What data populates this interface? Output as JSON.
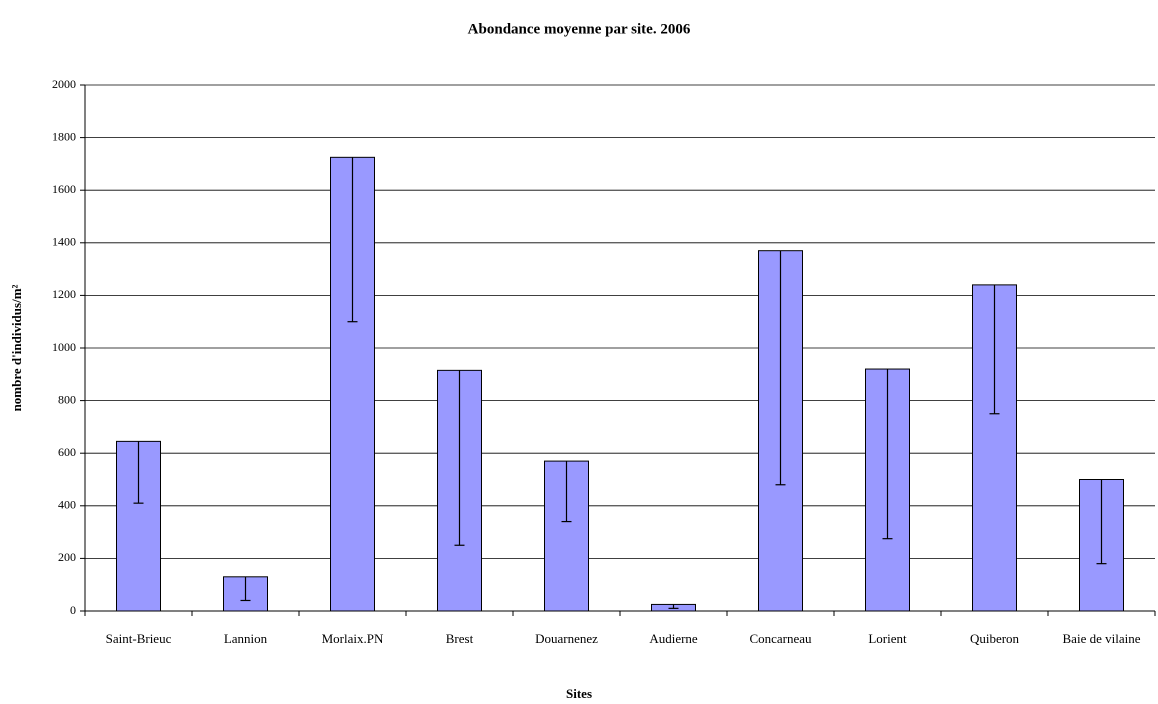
{
  "chart_data": {
    "type": "bar",
    "title": "Abondance moyenne par site. 2006",
    "x_label": "Sites",
    "y_label": "nombre d'individus/m²",
    "categories": [
      "Saint-Brieuc",
      "Lannion",
      "Morlaix.PN",
      "Brest",
      "Douarnenez",
      "Audierne",
      "Concarneau",
      "Lorient",
      "Quiberon",
      "Baie de vilaine"
    ],
    "values": [
      645,
      130,
      1725,
      915,
      570,
      25,
      1370,
      920,
      1240,
      500
    ],
    "errors": [
      235,
      90,
      625,
      665,
      230,
      15,
      890,
      645,
      490,
      320
    ],
    "color": "#9999ff",
    "ylim": [
      0,
      2000
    ],
    "yticks": [
      0,
      200,
      400,
      600,
      800,
      1000,
      1200,
      1400,
      1600,
      1800,
      2000
    ],
    "grid": true
  }
}
